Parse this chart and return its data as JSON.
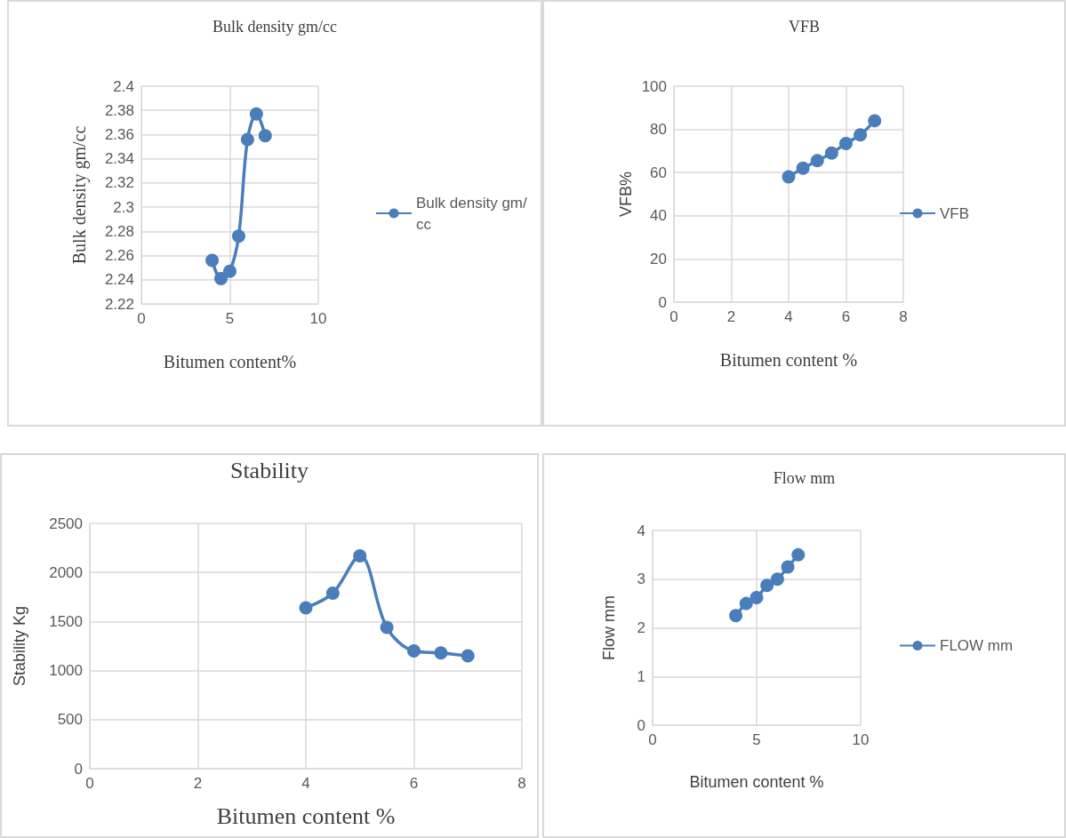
{
  "chart_data": [
    {
      "type": "line",
      "title": "Bulk density gm/cc",
      "xlabel": "Bitumen content%",
      "ylabel": "Bulk density gm/cc",
      "x": [
        4,
        4.5,
        5,
        5.5,
        6,
        6.5,
        7
      ],
      "series": [
        {
          "name": "Bulk density gm/cc",
          "color": "#4a7ebb",
          "values": [
            2.256,
            2.241,
            2.247,
            2.276,
            2.356,
            2.377,
            2.359
          ]
        }
      ],
      "xlim": [
        0,
        10
      ],
      "xticks": [
        0,
        5,
        10
      ],
      "ylim": [
        2.22,
        2.4
      ],
      "yticks": [
        2.22,
        2.24,
        2.26,
        2.28,
        2.3,
        2.32,
        2.34,
        2.36,
        2.38,
        2.4
      ],
      "grid": true,
      "legend": "right",
      "marker": "circle",
      "line_style": "solid"
    },
    {
      "type": "line",
      "title": "VFB",
      "xlabel": "Bitumen content %",
      "ylabel": "VFB%",
      "x": [
        4,
        4.5,
        5,
        5.5,
        6,
        6.5,
        7
      ],
      "series": [
        {
          "name": "VFB",
          "color": "#4a7ebb",
          "values": [
            58,
            62,
            65.5,
            69,
            73.5,
            77.5,
            84
          ]
        }
      ],
      "xlim": [
        0,
        8
      ],
      "xticks": [
        0,
        2,
        4,
        6,
        8
      ],
      "ylim": [
        0,
        100
      ],
      "yticks": [
        0,
        20,
        40,
        60,
        80,
        100
      ],
      "grid": true,
      "legend": "right",
      "marker": "circle",
      "line_style": "solid"
    },
    {
      "type": "line",
      "title": "Stability",
      "xlabel": "Bitumen content %",
      "ylabel": "Stability Kg",
      "x": [
        4,
        4.5,
        5,
        5.5,
        6,
        6.5,
        7
      ],
      "series": [
        {
          "color": "#4a7ebb",
          "values": [
            1640,
            1790,
            2170,
            1440,
            1200,
            1180,
            1150
          ]
        }
      ],
      "xlim": [
        0,
        8
      ],
      "xticks": [
        0,
        2,
        4,
        6,
        8
      ],
      "ylim": [
        0,
        2500
      ],
      "yticks": [
        0,
        500,
        1000,
        1500,
        2000,
        2500
      ],
      "grid": true,
      "marker": "circle",
      "line_style": "solid"
    },
    {
      "type": "line",
      "title": "Flow mm",
      "xlabel": "Bitumen content %",
      "ylabel": "Flow mm",
      "x": [
        4,
        4.5,
        5,
        5.5,
        6,
        6.5,
        7
      ],
      "series": [
        {
          "name": "FLOW mm",
          "color": "#4a7ebb",
          "values": [
            2.25,
            2.5,
            2.62,
            2.87,
            3.0,
            3.25,
            3.5
          ]
        }
      ],
      "xlim": [
        0,
        10
      ],
      "xticks": [
        0,
        5,
        10
      ],
      "ylim": [
        0,
        4
      ],
      "yticks": [
        0,
        1,
        2,
        3,
        4
      ],
      "grid": true,
      "legend": "right",
      "marker": "circle",
      "line_style": "solid"
    }
  ]
}
